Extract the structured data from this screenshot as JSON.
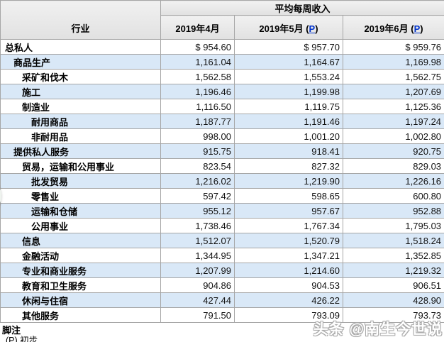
{
  "chart_data": {
    "type": "table",
    "title": "平均每周收入",
    "industry_header": "行业",
    "preliminary_mark": "P",
    "columns": [
      {
        "label": "2019年4月",
        "preliminary": false
      },
      {
        "label": "2019年5月",
        "preliminary": true
      },
      {
        "label": "2019年6月",
        "preliminary": true
      }
    ],
    "rows": [
      {
        "label": "总私人",
        "indent": 0,
        "values": [
          "$ 954.60",
          "$ 957.70",
          "$ 959.76"
        ]
      },
      {
        "label": "商品生产",
        "indent": 1,
        "values": [
          "1,161.04",
          "1,164.67",
          "1,169.98"
        ]
      },
      {
        "label": "采矿和伐木",
        "indent": 2,
        "values": [
          "1,562.58",
          "1,553.24",
          "1,562.75"
        ]
      },
      {
        "label": "施工",
        "indent": 2,
        "values": [
          "1,196.46",
          "1,199.98",
          "1,207.69"
        ]
      },
      {
        "label": "制造业",
        "indent": 2,
        "values": [
          "1,116.50",
          "1,119.75",
          "1,125.36"
        ]
      },
      {
        "label": "耐用商品",
        "indent": 3,
        "values": [
          "1,187.77",
          "1,191.46",
          "1,197.24"
        ]
      },
      {
        "label": "非耐用品",
        "indent": 3,
        "values": [
          "998.00",
          "1,001.20",
          "1,002.80"
        ]
      },
      {
        "label": "提供私人服务",
        "indent": 1,
        "values": [
          "915.75",
          "918.41",
          "920.75"
        ]
      },
      {
        "label": "贸易，运输和公用事业",
        "indent": 2,
        "values": [
          "823.54",
          "827.32",
          "829.03"
        ]
      },
      {
        "label": "批发贸易",
        "indent": 3,
        "values": [
          "1,216.02",
          "1,219.90",
          "1,226.16"
        ]
      },
      {
        "label": "零售业",
        "indent": 3,
        "values": [
          "597.42",
          "598.65",
          "600.80"
        ]
      },
      {
        "label": "运输和仓储",
        "indent": 3,
        "values": [
          "955.12",
          "957.67",
          "952.88"
        ]
      },
      {
        "label": "公用事业",
        "indent": 3,
        "values": [
          "1,738.46",
          "1,767.34",
          "1,795.03"
        ]
      },
      {
        "label": "信息",
        "indent": 2,
        "values": [
          "1,512.07",
          "1,520.79",
          "1,518.24"
        ]
      },
      {
        "label": "金融活动",
        "indent": 2,
        "values": [
          "1,344.95",
          "1,347.21",
          "1,352.85"
        ]
      },
      {
        "label": "专业和商业服务",
        "indent": 2,
        "values": [
          "1,207.99",
          "1,214.60",
          "1,219.32"
        ]
      },
      {
        "label": "教育和卫生服务",
        "indent": 2,
        "values": [
          "904.86",
          "904.53",
          "906.51"
        ]
      },
      {
        "label": "休闲与住宿",
        "indent": 2,
        "values": [
          "427.44",
          "426.22",
          "428.90"
        ]
      },
      {
        "label": "其他服务",
        "indent": 2,
        "values": [
          "791.50",
          "793.09",
          "793.73"
        ]
      }
    ]
  },
  "footnote": {
    "title": "脚注",
    "note": "(P) 初步"
  },
  "watermark": "头条 @南生今世说",
  "colors": {
    "row_alt": "#d9e8f7",
    "header_bg": "#e8e8e8",
    "link": "#0033cc",
    "border": "#a6a6a6",
    "float_ball": "#3da23f"
  }
}
